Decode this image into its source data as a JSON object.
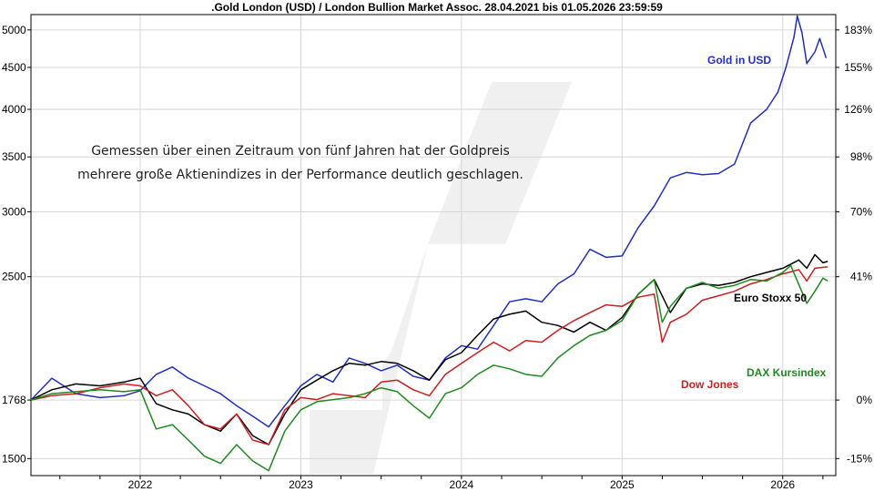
{
  "chart_data": {
    "type": "line",
    "title": ".Gold London (USD) / London Bullion Market Assoc. 28.04.2021 bis 01.05.2026 23:59:59",
    "annotation": [
      "Gemessen über einen Zeitraum von fünf Jahren hat der Goldpreis",
      "mehrere große Aktienindizes in der Performance deutlich geschlagen."
    ],
    "x_range": [
      2021.32,
      2026.33
    ],
    "x_ticks": [
      "2022",
      "2023",
      "2024",
      "2025",
      "2026"
    ],
    "y_left_range": [
      1430,
      5220
    ],
    "y_left_ticks": [
      1500,
      1768,
      2500,
      3000,
      3500,
      4000,
      4500,
      5000
    ],
    "y_left_tick_labels": [
      "1500",
      "1768",
      "2500",
      "3000",
      "3500",
      "4000",
      "4500",
      "5000"
    ],
    "y_right_ticks": [
      "-15%",
      "0%",
      "41%",
      "70%",
      "98%",
      "126%",
      "155%",
      "183%"
    ],
    "grid": true,
    "series": [
      {
        "name": "Gold in USD",
        "color": "#1f2fbf",
        "points": [
          [
            2021.32,
            1768
          ],
          [
            2021.45,
            1880
          ],
          [
            2021.6,
            1800
          ],
          [
            2021.75,
            1780
          ],
          [
            2021.9,
            1790
          ],
          [
            2022.0,
            1815
          ],
          [
            2022.1,
            1900
          ],
          [
            2022.2,
            1940
          ],
          [
            2022.3,
            1880
          ],
          [
            2022.4,
            1840
          ],
          [
            2022.5,
            1800
          ],
          [
            2022.6,
            1740
          ],
          [
            2022.7,
            1690
          ],
          [
            2022.8,
            1640
          ],
          [
            2022.9,
            1740
          ],
          [
            2023.0,
            1840
          ],
          [
            2023.1,
            1900
          ],
          [
            2023.2,
            1860
          ],
          [
            2023.3,
            1990
          ],
          [
            2023.4,
            1960
          ],
          [
            2023.5,
            1920
          ],
          [
            2023.6,
            1950
          ],
          [
            2023.7,
            1890
          ],
          [
            2023.8,
            1870
          ],
          [
            2023.9,
            1990
          ],
          [
            2024.0,
            2060
          ],
          [
            2024.1,
            2040
          ],
          [
            2024.2,
            2180
          ],
          [
            2024.3,
            2330
          ],
          [
            2024.4,
            2350
          ],
          [
            2024.5,
            2330
          ],
          [
            2024.6,
            2450
          ],
          [
            2024.7,
            2520
          ],
          [
            2024.8,
            2700
          ],
          [
            2024.9,
            2640
          ],
          [
            2025.0,
            2650
          ],
          [
            2025.1,
            2870
          ],
          [
            2025.2,
            3050
          ],
          [
            2025.3,
            3300
          ],
          [
            2025.4,
            3350
          ],
          [
            2025.5,
            3330
          ],
          [
            2025.6,
            3340
          ],
          [
            2025.7,
            3430
          ],
          [
            2025.8,
            3850
          ],
          [
            2025.9,
            4000
          ],
          [
            2025.97,
            4200
          ],
          [
            2026.02,
            4500
          ],
          [
            2026.07,
            4900
          ],
          [
            2026.09,
            5200
          ],
          [
            2026.12,
            4960
          ],
          [
            2026.15,
            4550
          ],
          [
            2026.2,
            4700
          ],
          [
            2026.23,
            4880
          ],
          [
            2026.27,
            4620
          ]
        ]
      },
      {
        "name": "Euro Stoxx 50",
        "color": "#000000",
        "points": [
          [
            2021.32,
            1768
          ],
          [
            2021.45,
            1820
          ],
          [
            2021.6,
            1850
          ],
          [
            2021.75,
            1840
          ],
          [
            2021.9,
            1860
          ],
          [
            2022.0,
            1880
          ],
          [
            2022.1,
            1750
          ],
          [
            2022.2,
            1720
          ],
          [
            2022.3,
            1700
          ],
          [
            2022.4,
            1650
          ],
          [
            2022.5,
            1620
          ],
          [
            2022.6,
            1700
          ],
          [
            2022.7,
            1600
          ],
          [
            2022.8,
            1560
          ],
          [
            2022.9,
            1700
          ],
          [
            2023.0,
            1820
          ],
          [
            2023.1,
            1870
          ],
          [
            2023.2,
            1920
          ],
          [
            2023.3,
            1960
          ],
          [
            2023.4,
            1950
          ],
          [
            2023.5,
            1970
          ],
          [
            2023.6,
            1960
          ],
          [
            2023.7,
            1920
          ],
          [
            2023.8,
            1870
          ],
          [
            2023.9,
            1980
          ],
          [
            2024.0,
            2020
          ],
          [
            2024.1,
            2120
          ],
          [
            2024.2,
            2220
          ],
          [
            2024.3,
            2250
          ],
          [
            2024.4,
            2270
          ],
          [
            2024.5,
            2200
          ],
          [
            2024.6,
            2180
          ],
          [
            2024.7,
            2140
          ],
          [
            2024.8,
            2200
          ],
          [
            2024.9,
            2150
          ],
          [
            2025.0,
            2230
          ],
          [
            2025.1,
            2380
          ],
          [
            2025.2,
            2480
          ],
          [
            2025.3,
            2260
          ],
          [
            2025.4,
            2420
          ],
          [
            2025.5,
            2450
          ],
          [
            2025.6,
            2440
          ],
          [
            2025.7,
            2460
          ],
          [
            2025.8,
            2500
          ],
          [
            2025.9,
            2530
          ],
          [
            2026.0,
            2560
          ],
          [
            2026.1,
            2620
          ],
          [
            2026.15,
            2560
          ],
          [
            2026.2,
            2660
          ],
          [
            2026.25,
            2600
          ],
          [
            2026.28,
            2610
          ]
        ]
      },
      {
        "name": "Dow Jones",
        "color": "#cc1f1f",
        "points": [
          [
            2021.32,
            1768
          ],
          [
            2021.45,
            1790
          ],
          [
            2021.6,
            1800
          ],
          [
            2021.75,
            1830
          ],
          [
            2021.9,
            1850
          ],
          [
            2022.0,
            1840
          ],
          [
            2022.1,
            1790
          ],
          [
            2022.2,
            1820
          ],
          [
            2022.3,
            1740
          ],
          [
            2022.4,
            1650
          ],
          [
            2022.5,
            1630
          ],
          [
            2022.6,
            1700
          ],
          [
            2022.7,
            1580
          ],
          [
            2022.8,
            1560
          ],
          [
            2022.9,
            1720
          ],
          [
            2023.0,
            1780
          ],
          [
            2023.1,
            1770
          ],
          [
            2023.2,
            1800
          ],
          [
            2023.3,
            1790
          ],
          [
            2023.4,
            1780
          ],
          [
            2023.5,
            1860
          ],
          [
            2023.6,
            1870
          ],
          [
            2023.7,
            1820
          ],
          [
            2023.8,
            1790
          ],
          [
            2023.9,
            1900
          ],
          [
            2024.0,
            1960
          ],
          [
            2024.1,
            2020
          ],
          [
            2024.2,
            2080
          ],
          [
            2024.3,
            2030
          ],
          [
            2024.4,
            2090
          ],
          [
            2024.5,
            2080
          ],
          [
            2024.6,
            2150
          ],
          [
            2024.7,
            2210
          ],
          [
            2024.8,
            2260
          ],
          [
            2024.9,
            2310
          ],
          [
            2025.0,
            2300
          ],
          [
            2025.1,
            2360
          ],
          [
            2025.2,
            2380
          ],
          [
            2025.25,
            2080
          ],
          [
            2025.3,
            2200
          ],
          [
            2025.4,
            2250
          ],
          [
            2025.5,
            2340
          ],
          [
            2025.6,
            2370
          ],
          [
            2025.7,
            2400
          ],
          [
            2025.8,
            2450
          ],
          [
            2025.9,
            2480
          ],
          [
            2026.0,
            2520
          ],
          [
            2026.1,
            2550
          ],
          [
            2026.15,
            2470
          ],
          [
            2026.2,
            2560
          ],
          [
            2026.28,
            2570
          ]
        ]
      },
      {
        "name": "DAX Kursindex",
        "color": "#1f8a1f",
        "points": [
          [
            2021.32,
            1768
          ],
          [
            2021.45,
            1800
          ],
          [
            2021.6,
            1810
          ],
          [
            2021.75,
            1820
          ],
          [
            2021.9,
            1810
          ],
          [
            2022.0,
            1820
          ],
          [
            2022.1,
            1630
          ],
          [
            2022.2,
            1650
          ],
          [
            2022.3,
            1580
          ],
          [
            2022.4,
            1510
          ],
          [
            2022.5,
            1480
          ],
          [
            2022.6,
            1560
          ],
          [
            2022.7,
            1490
          ],
          [
            2022.8,
            1450
          ],
          [
            2022.9,
            1620
          ],
          [
            2023.0,
            1720
          ],
          [
            2023.1,
            1760
          ],
          [
            2023.2,
            1770
          ],
          [
            2023.3,
            1780
          ],
          [
            2023.4,
            1800
          ],
          [
            2023.5,
            1830
          ],
          [
            2023.6,
            1810
          ],
          [
            2023.7,
            1740
          ],
          [
            2023.8,
            1680
          ],
          [
            2023.9,
            1800
          ],
          [
            2024.0,
            1830
          ],
          [
            2024.1,
            1900
          ],
          [
            2024.2,
            1950
          ],
          [
            2024.3,
            1930
          ],
          [
            2024.4,
            1900
          ],
          [
            2024.5,
            1890
          ],
          [
            2024.6,
            1990
          ],
          [
            2024.7,
            2060
          ],
          [
            2024.8,
            2120
          ],
          [
            2024.9,
            2150
          ],
          [
            2025.0,
            2210
          ],
          [
            2025.1,
            2380
          ],
          [
            2025.2,
            2480
          ],
          [
            2025.25,
            2200
          ],
          [
            2025.3,
            2300
          ],
          [
            2025.4,
            2420
          ],
          [
            2025.5,
            2460
          ],
          [
            2025.6,
            2420
          ],
          [
            2025.7,
            2440
          ],
          [
            2025.8,
            2480
          ],
          [
            2025.9,
            2470
          ],
          [
            2026.0,
            2530
          ],
          [
            2026.05,
            2580
          ],
          [
            2026.15,
            2320
          ],
          [
            2026.2,
            2400
          ],
          [
            2026.25,
            2490
          ],
          [
            2026.28,
            2470
          ]
        ]
      }
    ]
  }
}
